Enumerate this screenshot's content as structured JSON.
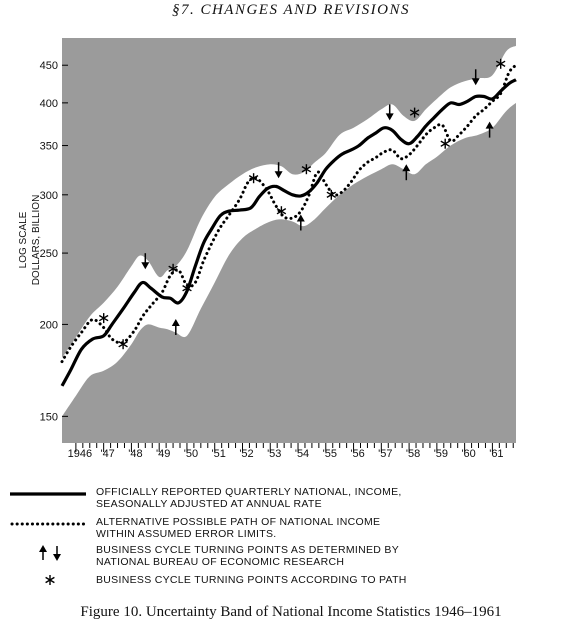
{
  "header": "§7. CHANGES AND REVISIONS",
  "caption": "Figure 10. Uncertainty Band of National Income Statistics 1946–1961",
  "colors": {
    "band": "#ffffff",
    "outside": "#9b9b9b",
    "line": "#000000"
  },
  "chart_data": {
    "type": "line",
    "yscale": "log",
    "ylabel": [
      "LOG SCALE",
      "DOLLARS, BILLION"
    ],
    "ylim": [
      138,
      490
    ],
    "yticks": [
      150,
      200,
      250,
      300,
      350,
      400,
      450
    ],
    "xlim": [
      1945.5,
      1961.85
    ],
    "xtick_values": [
      1946,
      1947,
      1948,
      1949,
      1950,
      1951,
      1952,
      1953,
      1954,
      1955,
      1956,
      1957,
      1958,
      1959,
      1960,
      1961
    ],
    "xtick_labels": [
      "1946",
      "'47",
      "'48",
      "'49",
      "'50",
      "'51",
      "'52",
      "'53",
      "'54",
      "'55",
      "'56",
      "'57",
      "'58",
      "'59",
      "'60",
      "'61"
    ],
    "series": [
      {
        "key": "official",
        "x": [
          1945.5,
          1945.8,
          1946.2,
          1946.6,
          1947.0,
          1947.3,
          1947.7,
          1948.1,
          1948.4,
          1948.7,
          1949.1,
          1949.4,
          1949.7,
          1950.0,
          1950.3,
          1950.6,
          1950.9,
          1951.2,
          1951.5,
          1951.9,
          1952.3,
          1952.6,
          1952.9,
          1953.2,
          1953.5,
          1953.8,
          1954.1,
          1954.4,
          1954.7,
          1955.0,
          1955.3,
          1955.6,
          1955.9,
          1956.2,
          1956.5,
          1956.8,
          1957.1,
          1957.4,
          1957.7,
          1958.0,
          1958.3,
          1958.6,
          1958.9,
          1959.2,
          1959.5,
          1959.8,
          1960.1,
          1960.4,
          1960.7,
          1961.0,
          1961.3,
          1961.6,
          1961.85
        ],
        "y": [
          165,
          173,
          185,
          191,
          193,
          200,
          210,
          221,
          228,
          224,
          218,
          217,
          214,
          222,
          240,
          258,
          270,
          281,
          285,
          286,
          288,
          298,
          306,
          308,
          304,
          300,
          299,
          303,
          312,
          325,
          334,
          341,
          345,
          350,
          358,
          364,
          370,
          367,
          357,
          352,
          360,
          372,
          382,
          392,
          400,
          398,
          402,
          408,
          408,
          405,
          415,
          425,
          430
        ]
      },
      {
        "key": "alternative",
        "x": [
          1945.5,
          1945.8,
          1946.2,
          1946.6,
          1947.0,
          1947.3,
          1947.7,
          1948.1,
          1948.4,
          1948.7,
          1949.1,
          1949.4,
          1949.7,
          1950.0,
          1950.3,
          1950.6,
          1950.9,
          1951.2,
          1951.5,
          1951.9,
          1952.2,
          1952.5,
          1952.9,
          1953.2,
          1953.5,
          1953.8,
          1954.1,
          1954.4,
          1954.7,
          1955.0,
          1955.3,
          1955.6,
          1955.9,
          1956.2,
          1956.5,
          1956.8,
          1957.1,
          1957.4,
          1957.7,
          1958.0,
          1958.3,
          1958.6,
          1958.9,
          1959.2,
          1959.5,
          1959.8,
          1960.1,
          1960.4,
          1960.7,
          1961.0,
          1961.3,
          1961.6,
          1961.85
        ],
        "y": [
          178,
          186,
          195,
          203,
          198,
          191,
          189,
          196,
          205,
          212,
          221,
          233,
          237,
          226,
          228,
          244,
          258,
          271,
          281,
          296,
          312,
          316,
          304,
          290,
          280,
          279,
          285,
          300,
          322,
          310,
          300,
          303,
          312,
          324,
          332,
          337,
          343,
          345,
          336,
          340,
          350,
          362,
          370,
          373,
          355,
          362,
          372,
          384,
          392,
          402,
          412,
          440,
          450
        ]
      }
    ],
    "band": {
      "x": [
        1945.5,
        1946.0,
        1946.5,
        1947.0,
        1947.5,
        1948.0,
        1948.3,
        1948.6,
        1949.0,
        1949.3,
        1949.6,
        1950.0,
        1950.5,
        1951.0,
        1951.5,
        1952.0,
        1952.5,
        1953.0,
        1953.4,
        1953.8,
        1954.2,
        1954.6,
        1955.0,
        1955.5,
        1956.0,
        1956.5,
        1957.0,
        1957.4,
        1957.8,
        1958.2,
        1958.6,
        1959.0,
        1959.5,
        1960.0,
        1960.5,
        1961.0,
        1961.5,
        1961.85
      ],
      "upper": [
        180,
        192,
        205,
        214,
        225,
        240,
        248,
        244,
        232,
        237,
        240,
        252,
        278,
        298,
        310,
        320,
        327,
        330,
        328,
        320,
        322,
        332,
        342,
        362,
        370,
        380,
        392,
        398,
        384,
        378,
        392,
        405,
        420,
        428,
        432,
        436,
        470,
        478
      ],
      "lower": [
        150,
        160,
        170,
        173,
        178,
        188,
        196,
        200,
        198,
        197,
        195,
        193,
        210,
        228,
        248,
        262,
        270,
        276,
        278,
        276,
        272,
        278,
        288,
        300,
        310,
        318,
        325,
        330,
        325,
        320,
        330,
        338,
        350,
        358,
        362,
        370,
        390,
        400
      ]
    },
    "markers": {
      "arrows_down": [
        {
          "x": 1948.5,
          "y": 243
        },
        {
          "x": 1953.3,
          "y": 323
        },
        {
          "x": 1957.3,
          "y": 387
        },
        {
          "x": 1960.4,
          "y": 432
        }
      ],
      "arrows_up": [
        {
          "x": 1949.6,
          "y": 199
        },
        {
          "x": 1954.1,
          "y": 276
        },
        {
          "x": 1957.9,
          "y": 323
        },
        {
          "x": 1960.9,
          "y": 369
        }
      ],
      "stars": [
        {
          "x": 1947.0,
          "y": 204
        },
        {
          "x": 1947.7,
          "y": 188
        },
        {
          "x": 1949.5,
          "y": 238
        },
        {
          "x": 1950.0,
          "y": 224
        },
        {
          "x": 1952.4,
          "y": 316
        },
        {
          "x": 1953.4,
          "y": 285
        },
        {
          "x": 1954.3,
          "y": 325
        },
        {
          "x": 1955.2,
          "y": 300
        },
        {
          "x": 1958.2,
          "y": 388
        },
        {
          "x": 1959.3,
          "y": 352
        },
        {
          "x": 1961.3,
          "y": 452
        }
      ]
    }
  },
  "legend": [
    {
      "symbol": "solid-line",
      "text": "OFFICIALLY REPORTED QUARTERLY NATIONAL, INCOME,\nSEASONALLY ADJUSTED AT ANNUAL RATE"
    },
    {
      "symbol": "dotted-line",
      "text": "ALTERNATIVE POSSIBLE PATH OF NATIONAL INCOME\nWITHIN ASSUMED ERROR LIMITS."
    },
    {
      "symbol": "arrows",
      "text": "BUSINESS CYCLE TURNING POINTS AS DETERMINED BY\nNATIONAL BUREAU OF ECONOMIC RESEARCH"
    },
    {
      "symbol": "asterisk",
      "text": "BUSINESS CYCLE TURNING POINTS ACCORDING TO PATH"
    }
  ]
}
